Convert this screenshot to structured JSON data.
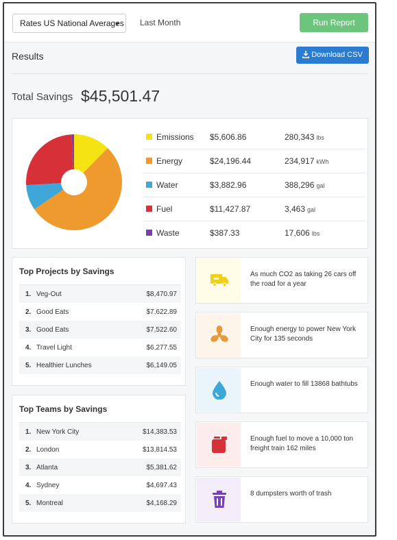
{
  "toolbar": {
    "rates_label": "Rates US National Averages",
    "period": "Last Month",
    "run_report": "Run Report"
  },
  "results": {
    "label": "Results",
    "download_csv": "Download CSV"
  },
  "total": {
    "label": "Total Savings",
    "value": "$45,501.47"
  },
  "breakdown": [
    {
      "name": "Emissions",
      "amount": "$5,606.86",
      "quantity": "280,343",
      "unit": "lbs",
      "color": "#f5e314",
      "share": 5606.86
    },
    {
      "name": "Energy",
      "amount": "$24,196.44",
      "quantity": "234,917",
      "unit": "kWh",
      "color": "#ef9a2e",
      "share": 24196.44
    },
    {
      "name": "Water",
      "amount": "$3,882.96",
      "quantity": "388,296",
      "unit": "gal",
      "color": "#3ea7d8",
      "share": 3882.96
    },
    {
      "name": "Fuel",
      "amount": "$11,427.87",
      "quantity": "3,463",
      "unit": "gal",
      "color": "#d63039",
      "share": 11427.87
    },
    {
      "name": "Waste",
      "amount": "$387.33",
      "quantity": "17,606",
      "unit": "lbs",
      "color": "#7a3fb5",
      "share": 387.33
    }
  ],
  "top_projects": {
    "title": "Top Projects by Savings",
    "rows": [
      {
        "rank": "1.",
        "name": "Veg-Out",
        "value": "$8,470.97"
      },
      {
        "rank": "2.",
        "name": "Good Eats",
        "value": "$7,622.89"
      },
      {
        "rank": "3.",
        "name": "Good Eats",
        "value": "$7,522.60"
      },
      {
        "rank": "4.",
        "name": "Travel Light",
        "value": "$6,277.55"
      },
      {
        "rank": "5.",
        "name": "Healthier Lunches",
        "value": "$6,149.05"
      }
    ]
  },
  "top_teams": {
    "title": "Top Teams by Savings",
    "rows": [
      {
        "rank": "1.",
        "name": "New York City",
        "value": "$14,383.53"
      },
      {
        "rank": "2.",
        "name": "London",
        "value": "$13,814.53"
      },
      {
        "rank": "3.",
        "name": "Atlanta",
        "value": "$5,381.62"
      },
      {
        "rank": "4.",
        "name": "Sydney",
        "value": "$4,697.43"
      },
      {
        "rank": "5.",
        "name": "Montreal",
        "value": "$4,168.29"
      }
    ]
  },
  "impacts": [
    {
      "icon": "truck-icon",
      "text": "As much CO2 as taking 26 cars off the road for a year",
      "color": "#f2cf1a",
      "bg": "#fffde8"
    },
    {
      "icon": "fan-icon",
      "text": "Enough energy to power New York City for 135 seconds",
      "color": "#e89a3a",
      "bg": "#fdf5ea"
    },
    {
      "icon": "water-drop-icon",
      "text": "Enough water to fill 13868 bathtubs",
      "color": "#3ea7d8",
      "bg": "#eaf5fb"
    },
    {
      "icon": "fuel-can-icon",
      "text": "Enough fuel to move a 10,000 ton freight train 162 miles",
      "color": "#d63039",
      "bg": "#fcecec"
    },
    {
      "icon": "trash-can-icon",
      "text": "8 dumpsters worth of trash",
      "color": "#7a3fb5",
      "bg": "#f3ecf9"
    }
  ],
  "chart_data": {
    "type": "pie",
    "categories": [
      "Emissions",
      "Energy",
      "Water",
      "Fuel",
      "Waste"
    ],
    "values": [
      5606.86,
      24196.44,
      3882.96,
      11427.87,
      387.33
    ],
    "colors": [
      "#f5e314",
      "#ef9a2e",
      "#3ea7d8",
      "#d63039",
      "#7a3fb5"
    ]
  }
}
